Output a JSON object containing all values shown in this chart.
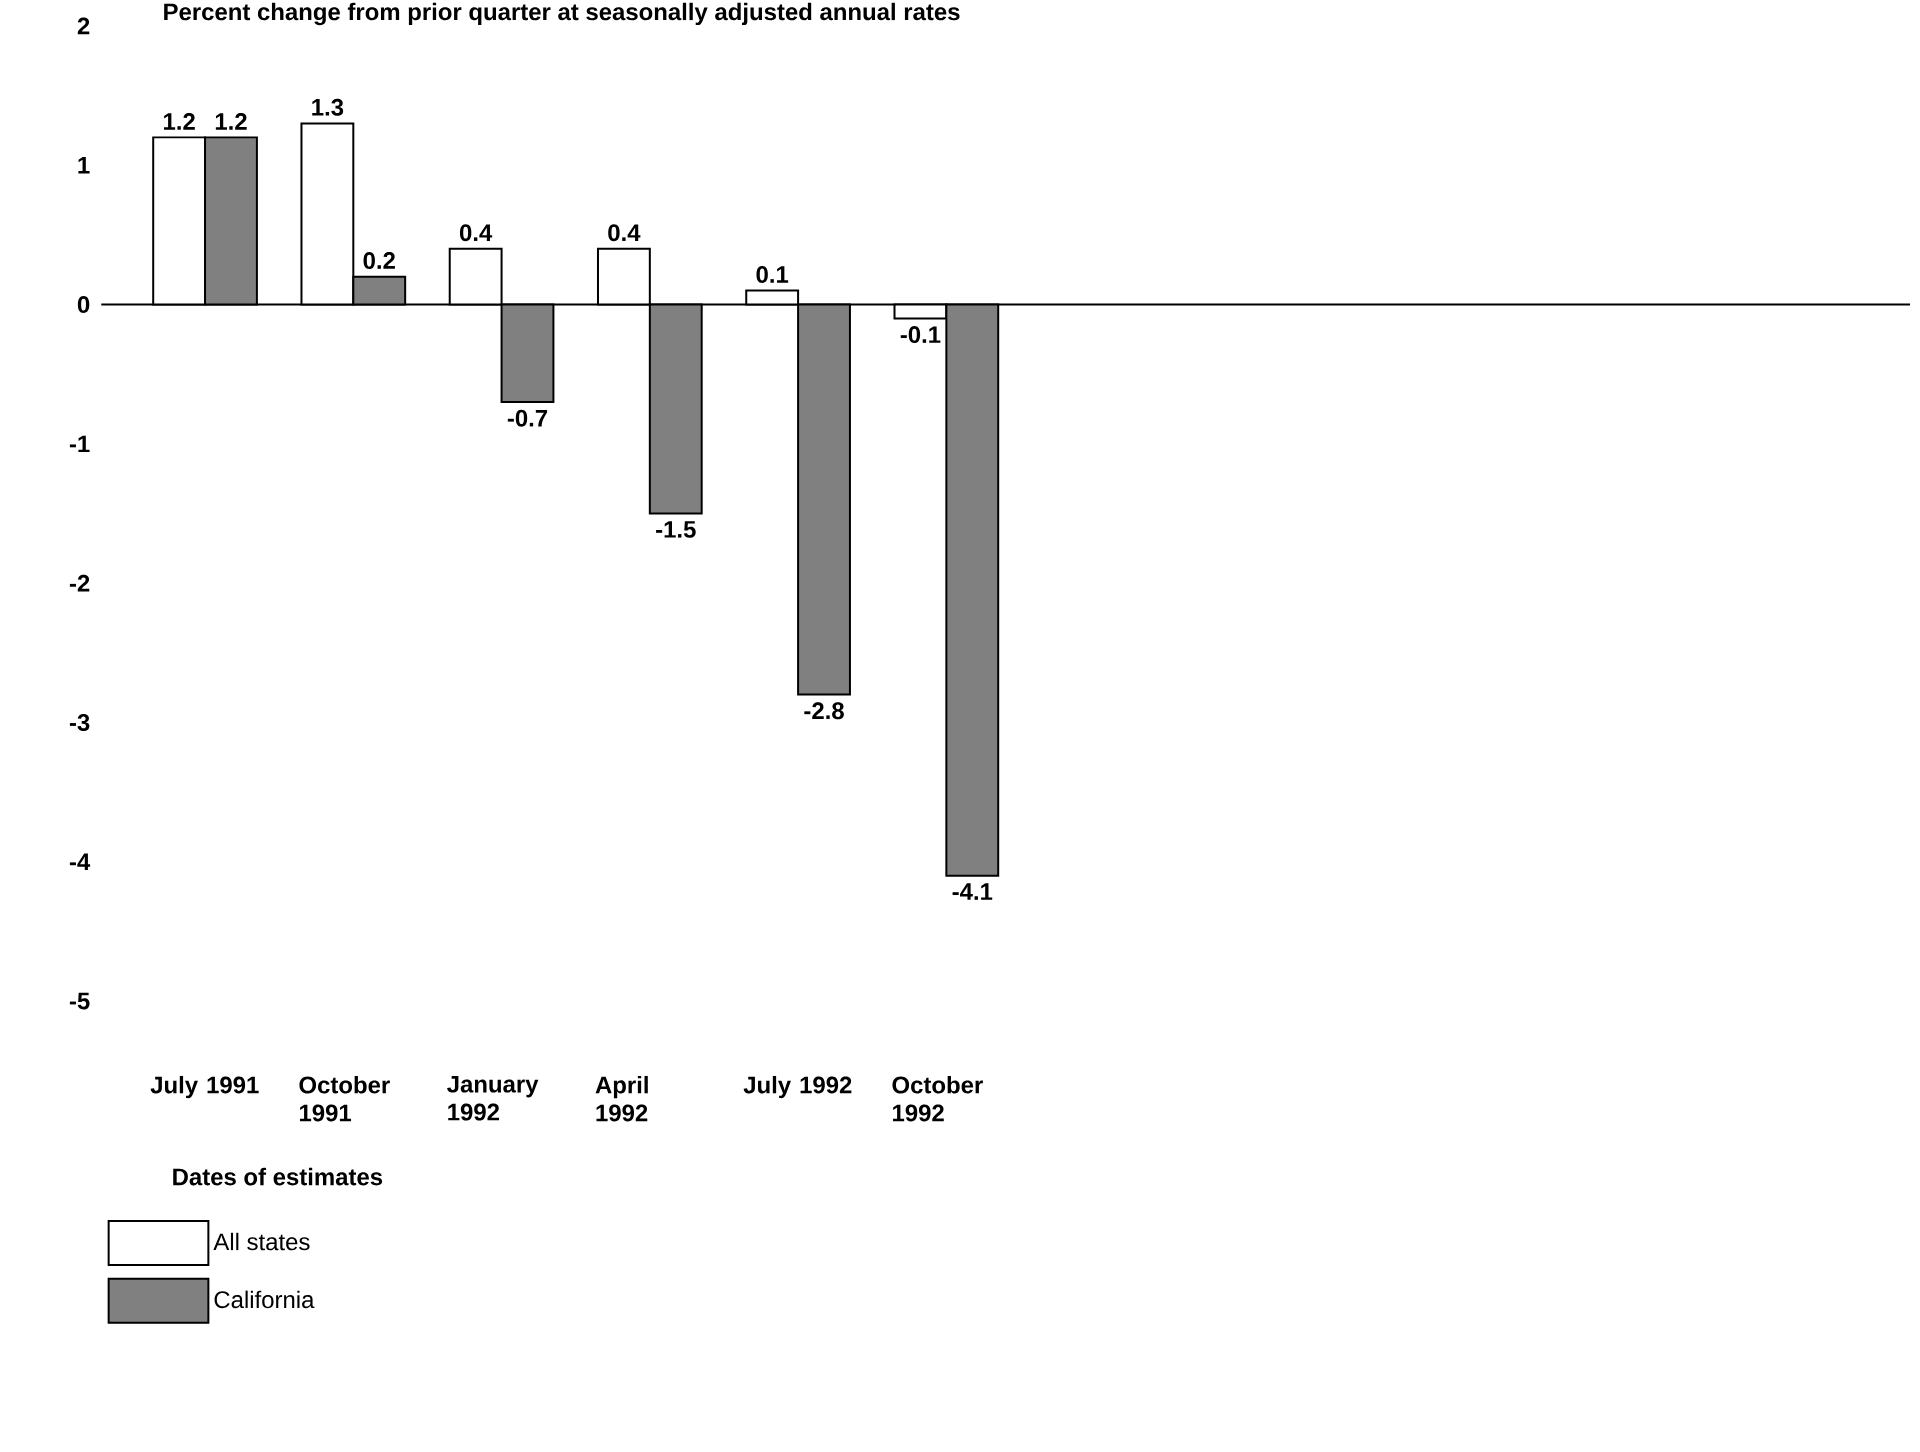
{
  "chart_data": {
    "type": "bar",
    "title": "Percent change from prior quarter at seasonally adjusted annual rates",
    "xlabel": "Dates of estimates",
    "categories": [
      "July 1991",
      "October 1991",
      "January 1992",
      "April 1992",
      "July 1992",
      "October 1992"
    ],
    "series": [
      {
        "name": "All states",
        "color": "#ffffff",
        "values": [
          1.2,
          1.3,
          0.4,
          0.4,
          0.1,
          -0.1
        ]
      },
      {
        "name": "California",
        "color": "#808080",
        "values": [
          1.2,
          0.2,
          -0.7,
          -1.5,
          -2.8,
          -4.1
        ]
      }
    ],
    "ylim": [
      -5,
      2
    ],
    "yticks": [
      -5,
      -4,
      -3,
      -2,
      -1,
      0,
      1,
      2
    ],
    "data_labels": true,
    "legend": "bottom left"
  }
}
